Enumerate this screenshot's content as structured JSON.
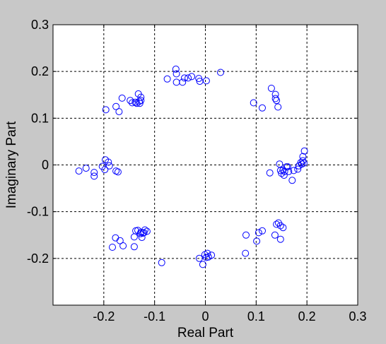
{
  "figure": {
    "background": "#c8c8c8",
    "plot_background": "#ffffff",
    "marker_color": "#0000ff"
  },
  "chart_data": {
    "type": "scatter",
    "title": "",
    "xlabel": "Real Part",
    "ylabel": "Imaginary Part",
    "xlim": [
      -0.3,
      0.3
    ],
    "ylim": [
      -0.3,
      0.3
    ],
    "xticks": [
      -0.2,
      -0.1,
      0,
      0.1,
      0.2,
      0.3
    ],
    "xtick_labels": [
      "-0.2",
      "-0.1",
      "0",
      "0.1",
      "0.2",
      "0.3"
    ],
    "yticks": [
      -0.2,
      -0.1,
      0,
      0.1,
      0.2,
      0.3
    ],
    "ytick_labels": [
      "-0.2",
      "-0.1",
      "0",
      "0.1",
      "0.2",
      "0.3"
    ],
    "grid": true,
    "marker": "circle-open",
    "series": [
      {
        "points": [
          [
            -0.249,
            -0.013
          ],
          [
            -0.235,
            -0.007
          ],
          [
            -0.219,
            -0.016
          ],
          [
            -0.219,
            -0.024
          ],
          [
            -0.203,
            -0.003
          ],
          [
            -0.198,
            -0.01
          ],
          [
            -0.197,
            0.011
          ],
          [
            -0.191,
            0.006
          ],
          [
            -0.189,
            -0.002
          ],
          [
            -0.176,
            -0.013
          ],
          [
            -0.172,
            -0.015
          ],
          [
            -0.196,
            0.118
          ],
          [
            -0.176,
            0.125
          ],
          [
            -0.17,
            0.114
          ],
          [
            -0.164,
            0.143
          ],
          [
            -0.148,
            0.138
          ],
          [
            -0.144,
            0.133
          ],
          [
            -0.138,
            0.134
          ],
          [
            -0.135,
            0.132
          ],
          [
            -0.132,
            0.152
          ],
          [
            -0.13,
            0.136
          ],
          [
            -0.129,
            0.132
          ],
          [
            -0.127,
            0.145
          ],
          [
            -0.127,
            0.138
          ],
          [
            -0.075,
            0.184
          ],
          [
            -0.058,
            0.205
          ],
          [
            -0.057,
            0.195
          ],
          [
            -0.057,
            0.177
          ],
          [
            -0.045,
            0.177
          ],
          [
            -0.041,
            0.186
          ],
          [
            -0.034,
            0.186
          ],
          [
            -0.027,
            0.189
          ],
          [
            -0.013,
            0.185
          ],
          [
            -0.011,
            0.179
          ],
          [
            0.002,
            0.18
          ],
          [
            0.03,
            0.198
          ],
          [
            0.095,
            0.133
          ],
          [
            0.112,
            0.122
          ],
          [
            0.13,
            0.164
          ],
          [
            0.138,
            0.151
          ],
          [
            0.138,
            0.142
          ],
          [
            0.14,
            0.138
          ],
          [
            0.143,
            0.124
          ],
          [
            0.127,
            -0.017
          ],
          [
            0.146,
            0.002
          ],
          [
            0.148,
            -0.012
          ],
          [
            0.15,
            -0.018
          ],
          [
            0.153,
            -0.011
          ],
          [
            0.155,
            -0.022
          ],
          [
            0.156,
            -0.014
          ],
          [
            0.16,
            -0.004
          ],
          [
            0.162,
            -0.004
          ],
          [
            0.164,
            -0.014
          ],
          [
            0.171,
            -0.033
          ],
          [
            0.174,
            -0.012
          ],
          [
            0.182,
            -0.009
          ],
          [
            0.184,
            -0.002
          ],
          [
            0.188,
            0.005
          ],
          [
            0.19,
            0.002
          ],
          [
            0.192,
            0.009
          ],
          [
            0.192,
            0.018
          ],
          [
            0.194,
            0.004
          ],
          [
            0.195,
            0.03
          ],
          [
            -0.183,
            -0.176
          ],
          [
            -0.177,
            -0.156
          ],
          [
            -0.168,
            -0.162
          ],
          [
            -0.162,
            -0.173
          ],
          [
            -0.14,
            -0.175
          ],
          [
            -0.14,
            -0.154
          ],
          [
            -0.137,
            -0.141
          ],
          [
            -0.133,
            -0.14
          ],
          [
            -0.128,
            -0.147
          ],
          [
            -0.127,
            -0.144
          ],
          [
            -0.125,
            -0.155
          ],
          [
            -0.123,
            -0.146
          ],
          [
            -0.121,
            -0.145
          ],
          [
            -0.119,
            -0.139
          ],
          [
            -0.115,
            -0.142
          ],
          [
            -0.086,
            -0.209
          ],
          [
            -0.012,
            -0.2
          ],
          [
            -0.005,
            -0.213
          ],
          [
            -0.001,
            -0.192
          ],
          [
            0.002,
            -0.198
          ],
          [
            0.004,
            -0.189
          ],
          [
            0.006,
            -0.197
          ],
          [
            0.012,
            -0.193
          ],
          [
            0.079,
            -0.189
          ],
          [
            0.08,
            -0.15
          ],
          [
            0.101,
            -0.163
          ],
          [
            0.105,
            -0.145
          ],
          [
            0.112,
            -0.141
          ],
          [
            0.137,
            -0.15
          ],
          [
            0.14,
            -0.127
          ],
          [
            0.144,
            -0.124
          ],
          [
            0.148,
            -0.13
          ],
          [
            0.148,
            -0.159
          ],
          [
            0.153,
            -0.134
          ]
        ]
      }
    ]
  }
}
